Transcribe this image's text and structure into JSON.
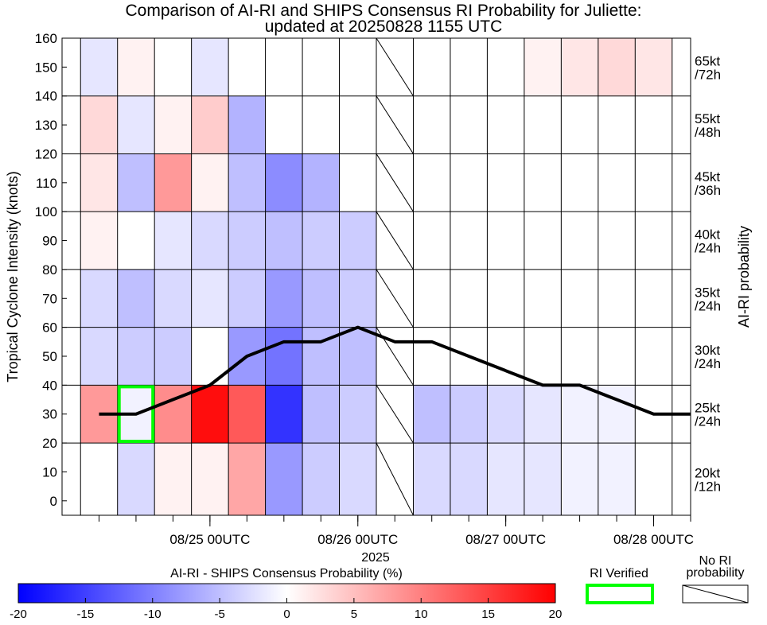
{
  "chart_data": {
    "type": "heatmap",
    "title": "Comparison of AI-RI and SHIPS Consensus RI Probability for Juliette:",
    "subtitle": "updated at 20250828 1155 UTC",
    "ylabel": "Tropical Cyclone Intensity (knots)",
    "xlabel": "2025",
    "right_label": "AI-RI probability",
    "ylim": [
      -5,
      160
    ],
    "yticks": [
      0,
      10,
      20,
      30,
      40,
      50,
      60,
      70,
      80,
      90,
      100,
      110,
      120,
      130,
      140,
      150,
      160
    ],
    "x_step_hours": 6,
    "x_start": "08/24 06UTC",
    "x_end": "08/28 12UTC",
    "x_tick_labels": [
      {
        "label": "08/25 00UTC",
        "index": 3
      },
      {
        "label": "08/26 00UTC",
        "index": 7
      },
      {
        "label": "08/27 00UTC",
        "index": 11
      },
      {
        "label": "08/28 00UTC",
        "index": 15
      }
    ],
    "bands": [
      {
        "label": "20kt /12h",
        "line1": "20kt",
        "line2": "/12h",
        "range": [
          -5,
          20
        ]
      },
      {
        "label": "25kt /24h",
        "line1": "25kt",
        "line2": "/24h",
        "range": [
          20,
          40
        ]
      },
      {
        "label": "30kt /24h",
        "line1": "30kt",
        "line2": "/24h",
        "range": [
          40,
          60
        ]
      },
      {
        "label": "35kt /24h",
        "line1": "35kt",
        "line2": "/24h",
        "range": [
          60,
          80
        ]
      },
      {
        "label": "40kt /24h",
        "line1": "40kt",
        "line2": "/24h",
        "range": [
          80,
          100
        ]
      },
      {
        "label": "45kt /36h",
        "line1": "45kt",
        "line2": "/36h",
        "range": [
          100,
          120
        ]
      },
      {
        "label": "55kt /48h",
        "line1": "55kt",
        "line2": "/48h",
        "range": [
          120,
          140
        ]
      },
      {
        "label": "65kt /72h",
        "line1": "65kt",
        "line2": "/72h",
        "range": [
          140,
          160
        ]
      }
    ],
    "columns": [
      "08/24 12UTC",
      "08/24 18UTC",
      "08/25 00UTC",
      "08/25 06UTC",
      "08/25 12UTC",
      "08/25 18UTC",
      "08/26 00UTC",
      "08/26 06UTC",
      "08/26 12UTC",
      "08/26 18UTC",
      "08/27 00UTC",
      "08/27 06UTC",
      "08/27 12UTC",
      "08/27 18UTC",
      "08/28 00UTC",
      "08/28 06UTC"
    ],
    "difference_values_percent": [
      [
        0,
        -3,
        1,
        1,
        7,
        -8,
        -4,
        -3,
        null,
        -3,
        -3,
        -2,
        -2,
        -1,
        -1,
        0
      ],
      [
        8,
        -1,
        9,
        19,
        13,
        -16,
        -5,
        -4,
        null,
        -5,
        -4,
        -3,
        -2,
        -1,
        -1,
        0
      ],
      [
        -3,
        -4,
        -4,
        0,
        -8,
        -11,
        -5,
        -5,
        null,
        0,
        0,
        0,
        0,
        0,
        0,
        0
      ],
      [
        -3,
        -5,
        -3,
        -2,
        -4,
        -8,
        -5,
        -4,
        null,
        0,
        0,
        0,
        0,
        0,
        0,
        0
      ],
      [
        1,
        0,
        -2,
        -3,
        -4,
        -5,
        -4,
        -4,
        null,
        0,
        0,
        0,
        0,
        0,
        0,
        0
      ],
      [
        2,
        -5,
        8,
        1,
        -5,
        -9,
        -6,
        0,
        null,
        0,
        0,
        0,
        0,
        0,
        0,
        0
      ],
      [
        3,
        -2,
        1,
        4,
        -6,
        0,
        0,
        0,
        null,
        0,
        0,
        0,
        0,
        0,
        0,
        0
      ],
      [
        -2,
        1,
        0,
        -2,
        0,
        0,
        0,
        0,
        null,
        0,
        0,
        0,
        1,
        2,
        3,
        2
      ]
    ],
    "ri_verified": [
      {
        "band": "25kt /24h",
        "column": "08/24 18UTC"
      }
    ],
    "intensity_track": {
      "x": [
        "08/24 12UTC",
        "08/24 18UTC",
        "08/25 00UTC",
        "08/25 06UTC",
        "08/25 12UTC",
        "08/25 18UTC",
        "08/26 00UTC",
        "08/26 06UTC",
        "08/26 12UTC",
        "08/26 18UTC",
        "08/27 00UTC",
        "08/27 06UTC",
        "08/27 12UTC",
        "08/27 18UTC",
        "08/28 00UTC",
        "08/28 06UTC",
        "08/28 12UTC"
      ],
      "y": [
        30,
        30,
        35,
        40,
        50,
        55,
        55,
        60,
        55,
        55,
        50,
        45,
        40,
        40,
        35,
        30,
        null
      ]
    },
    "colorbar": {
      "label": "AI-RI - SHIPS Consensus Probability (%)",
      "min": -20,
      "max": 20,
      "ticks": [
        -20,
        -15,
        -10,
        -5,
        0,
        5,
        10,
        15,
        20
      ],
      "colors": [
        "#0000ff",
        "#ffffff",
        "#ff0000"
      ]
    },
    "legend": {
      "verified_label": "RI Verified",
      "verified_color": "#00ff00",
      "no_ri_label_1": "No RI",
      "no_ri_label_2": "probability"
    }
  }
}
